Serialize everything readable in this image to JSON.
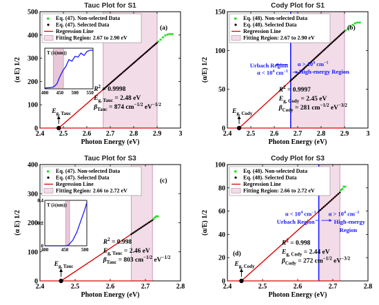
{
  "chart_data": [
    {
      "type": "scatter",
      "panel_label": "(a)",
      "title": "Tauc Plot for S1",
      "xlabel": "Photon Energy (eV)",
      "ylabel": "(α E) 1/2",
      "xlim": [
        2.4,
        3.0
      ],
      "ylim": [
        0,
        500
      ],
      "xticks": [
        "2.4",
        "2.5",
        "2.6",
        "2.7",
        "2.8",
        "2.9",
        "3"
      ],
      "yticks": [
        "0",
        "100",
        "200",
        "300",
        "400",
        "500"
      ],
      "fit_region": [
        2.67,
        2.9
      ],
      "zero_line_until": 2.9,
      "legend": [
        "Eq. (47). Non-selected Data",
        "Eq. (47). Selected Data",
        "Regression Line",
        "Fitting Region: 2.67 to 2.90 eV"
      ],
      "regression": {
        "x": [
          2.48,
          2.9
        ],
        "y": [
          0,
          367
        ]
      },
      "selected": {
        "x_start": 2.67,
        "x_end": 2.9,
        "count": 40,
        "x0": 2.48,
        "slope": 874
      },
      "nonselected": {
        "x": [
          2.905,
          2.915,
          2.925,
          2.935,
          2.945,
          2.955,
          2.965
        ],
        "y": [
          372,
          380,
          390,
          398,
          402,
          404,
          404
        ]
      },
      "eg_marker": {
        "x": 2.48,
        "y": 0
      },
      "eg_label": {
        "main": "E",
        "sub": "g, Tauc"
      },
      "stats": [
        {
          "main": "R",
          "sup": "2",
          "rest": " = 0.9998"
        },
        {
          "main": "E",
          "sub": "g, Tauc",
          "rest": " = 2.48 eV"
        },
        {
          "main": "β",
          "sub": "Tauc",
          "rest": " = 874 cm",
          "sup2": "−1/2",
          "rest2": " eV",
          "sup3": "−1/2"
        }
      ],
      "inset": {
        "ylabel": "T (λ(nm))",
        "xticks": [
          "400",
          "450",
          "500",
          "550"
        ],
        "xlim": [
          400,
          560
        ],
        "ylim": [
          0,
          1
        ],
        "band": [
          428,
          462
        ],
        "curve": [
          [
            400,
            0.02
          ],
          [
            420,
            0.03
          ],
          [
            430,
            0.05
          ],
          [
            440,
            0.12
          ],
          [
            450,
            0.3
          ],
          [
            460,
            0.45
          ],
          [
            470,
            0.55
          ],
          [
            480,
            0.72
          ],
          [
            490,
            0.68
          ],
          [
            500,
            0.8
          ],
          [
            510,
            0.78
          ],
          [
            520,
            0.88
          ],
          [
            530,
            0.82
          ],
          [
            540,
            0.92
          ],
          [
            550,
            0.95
          ],
          [
            560,
            0.95
          ]
        ]
      }
    },
    {
      "type": "scatter",
      "panel_label": "(b)",
      "title": "Cody Plot for S1",
      "xlabel": "Photon Energy (eV)",
      "ylabel": "(α/E) 1/2",
      "xlim": [
        2.4,
        3.0
      ],
      "ylim": [
        0,
        150
      ],
      "xticks": [
        "2.4",
        "2.5",
        "2.6",
        "2.7",
        "2.8",
        "2.9",
        "3"
      ],
      "yticks": [
        "0",
        "50",
        "100",
        "150"
      ],
      "fit_region": [
        2.67,
        2.9
      ],
      "zero_line_until": 2.9,
      "vline": 2.67,
      "legend": [
        "Eq. (48). Non-selected Data",
        "Eq. (48). Selected Data",
        "Regression Line",
        "Fitting Region: 2.67 to 2.90 eV"
      ],
      "regression": {
        "x": [
          2.45,
          2.9
        ],
        "y": [
          0,
          125
        ]
      },
      "selected": {
        "x_start": 2.67,
        "x_end": 2.9,
        "count": 40,
        "x0": 2.45,
        "slope": 281
      },
      "nonselected": {
        "x": [
          2.905,
          2.915,
          2.925,
          2.935,
          2.945,
          2.955,
          2.965
        ],
        "y": [
          126,
          128,
          131,
          133,
          135,
          136,
          136
        ]
      },
      "eg_marker": {
        "x": 2.45,
        "y": 0
      },
      "eg_label": {
        "main": "E",
        "sub": "g, Cody"
      },
      "region_left": {
        "l1": "Urbach Region",
        "l2": "α < 10",
        "l2sup": "4",
        "l2end": " cm",
        "l2sup2": "−1"
      },
      "region_right": {
        "l1": "α > 10",
        "l1sup": "4",
        "l1end": " cm",
        "l1sup2": "−1",
        "l2": "High-energy Region"
      },
      "stats": [
        {
          "main": "R",
          "sup": "2",
          "rest": " = 0.9997"
        },
        {
          "main": "E",
          "sub": "g, Cody",
          "rest": " = 2.45 eV"
        },
        {
          "main": "β",
          "sub": "Cody",
          "rest": " = 281 cm",
          "sup2": "−1/2",
          "rest2": " eV",
          "sup3": "−3/2"
        }
      ]
    },
    {
      "type": "scatter",
      "panel_label": "(c)",
      "title": "Tauc Plot for S3",
      "xlabel": "Photon Energy (eV)",
      "ylabel": "(α E) 1/2",
      "xlim": [
        2.4,
        2.8
      ],
      "ylim": [
        0,
        400
      ],
      "xticks": [
        "2.4",
        "2.5",
        "2.6",
        "2.7",
        "2.8"
      ],
      "yticks": [
        "0",
        "100",
        "200",
        "300",
        "400"
      ],
      "fit_region": [
        2.66,
        2.72
      ],
      "zero_line_until": 2.72,
      "legend": [
        "Eq. (47). Non-selected Data",
        "Eq. (47). Selected Data",
        "Regression Line",
        "Fitting Region: 2.66 to 2.72 eV"
      ],
      "regression": {
        "x": [
          2.46,
          2.72
        ],
        "y": [
          0,
          209
        ]
      },
      "selected": {
        "x_start": 2.66,
        "x_end": 2.72,
        "count": 14,
        "x0": 2.46,
        "slope": 803
      },
      "nonselected": {
        "x": [
          2.723,
          2.727,
          2.731,
          2.735
        ],
        "y": [
          213,
          218,
          222,
          222
        ]
      },
      "eg_marker": {
        "x": 2.46,
        "y": 0
      },
      "eg_label": {
        "main": "E",
        "sub": "g, Tauc"
      },
      "stats": [
        {
          "main": "R",
          "sup": "2",
          "rest": " = 0.998"
        },
        {
          "main": "E",
          "sub": "g, Tauc",
          "rest": " = 2.46 eV"
        },
        {
          "main": "β",
          "sub": "Tauc",
          "rest": " = 803 cm",
          "sup2": "−1/2",
          "rest2": " eV",
          "sup3": "−1/2"
        }
      ],
      "inset": {
        "ylabel": "T (λ(nm))",
        "xticks": [
          "400",
          "450",
          "500"
        ],
        "yticks": [
          "0",
          "0.2",
          "0.4"
        ],
        "xlim": [
          400,
          505
        ],
        "ylim": [
          0,
          0.4
        ],
        "band": [
          452,
          462
        ],
        "curve": [
          [
            400,
            0.0
          ],
          [
            440,
            0.0
          ],
          [
            455,
            0.0
          ],
          [
            460,
            0.01
          ],
          [
            470,
            0.05
          ],
          [
            480,
            0.12
          ],
          [
            490,
            0.22
          ],
          [
            500,
            0.32
          ],
          [
            505,
            0.38
          ]
        ]
      }
    },
    {
      "type": "scatter",
      "panel_label": "(d)",
      "title": "Cody Plot for S3",
      "xlabel": "Photon Energy (eV)",
      "ylabel": "(α/E) 1/2",
      "xlim": [
        2.4,
        2.8
      ],
      "ylim": [
        0,
        100
      ],
      "xticks": [
        "2.4",
        "2.5",
        "2.6",
        "2.7",
        "2.8"
      ],
      "yticks": [
        "0",
        "20",
        "40",
        "60",
        "80",
        "100"
      ],
      "fit_region": [
        2.66,
        2.72
      ],
      "zero_line_until": 2.72,
      "vline": 2.66,
      "legend": [
        "Eq. (48). Non-selected Data",
        "Eq. (48). Selected Data",
        "Regression Line",
        "Fitting Region: 2.66 to 2.72 eV"
      ],
      "regression": {
        "x": [
          2.44,
          2.72
        ],
        "y": [
          0,
          76
        ]
      },
      "selected": {
        "x_start": 2.66,
        "x_end": 2.72,
        "count": 14,
        "x0": 2.44,
        "slope": 272
      },
      "nonselected": {
        "x": [
          2.723,
          2.727,
          2.731,
          2.735
        ],
        "y": [
          78,
          79,
          81,
          81
        ]
      },
      "eg_marker": {
        "x": 2.44,
        "y": 0
      },
      "eg_label": {
        "main": "E",
        "sub": "g, Cody"
      },
      "region_left": {
        "l1": "α < 10",
        "l1sup": "4",
        "l1end": " cm",
        "l1sup2": "−1",
        "l2": "Urbach Region"
      },
      "region_right": {
        "l1": "α > 10",
        "l1sup": "4",
        "l1end": " cm",
        "l1sup2": "−1",
        "l2": "High-energy",
        "l3": "Region"
      },
      "stats": [
        {
          "main": "R",
          "sup": "2",
          "rest": " = 0.998"
        },
        {
          "main": "E",
          "sub": "g, Cody",
          "rest": " = 2.44 eV"
        },
        {
          "main": "β",
          "sub": "Cody",
          "rest": " = 272 cm",
          "sup2": "−1/2",
          "rest2": " eV",
          "sup3": "−3/2"
        }
      ]
    }
  ],
  "colors": {
    "nonselected": "#22dd22",
    "selected": "#000000",
    "regression": "#dd0000",
    "fit_fill": "#f2dce8",
    "fit_edge": "#c080a8",
    "region_line": "#1a1aff",
    "inset_curve": "#1a1aff",
    "inset_band": "#e8c8d8"
  }
}
